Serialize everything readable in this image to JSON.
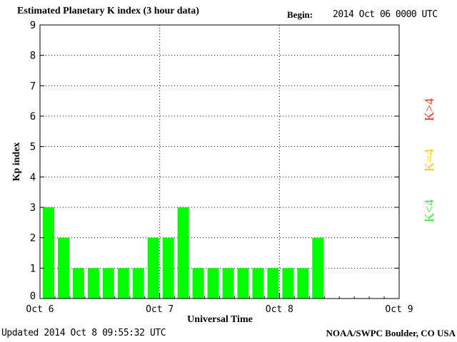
{
  "header": {
    "title": "Estimated Planetary K index (3 hour data)",
    "begin_label": "Begin:",
    "begin_value": "2014 Oct 06 0000 UTC"
  },
  "footer": {
    "updated": "Updated 2014 Oct  8 09:55:32 UTC",
    "credit": "NOAA/SWPC Boulder, CO USA"
  },
  "legend": {
    "low": "K<4",
    "equal": "K=4",
    "high": "K>4"
  },
  "colors": {
    "bar_low": "#00ff00",
    "bar_equal": "#ffcc00",
    "bar_high": "#ff2200",
    "grid": "#000000"
  },
  "chart_data": {
    "type": "bar",
    "title": "Estimated Planetary K index (3 hour data)",
    "xlabel": "Universal Time",
    "ylabel": "Kp index",
    "ylim": [
      0,
      9
    ],
    "yticks": [
      "0",
      "1",
      "2",
      "3",
      "4",
      "5",
      "6",
      "7",
      "8",
      "9"
    ],
    "xticks": [
      "Oct 6",
      "Oct 7",
      "Oct 8",
      "Oct 9"
    ],
    "interval_hours": 3,
    "values": [
      3,
      2,
      1,
      1,
      1,
      1,
      1,
      2,
      2,
      3,
      1,
      1,
      1,
      1,
      1,
      1,
      1,
      1,
      2
    ],
    "grid": true
  }
}
